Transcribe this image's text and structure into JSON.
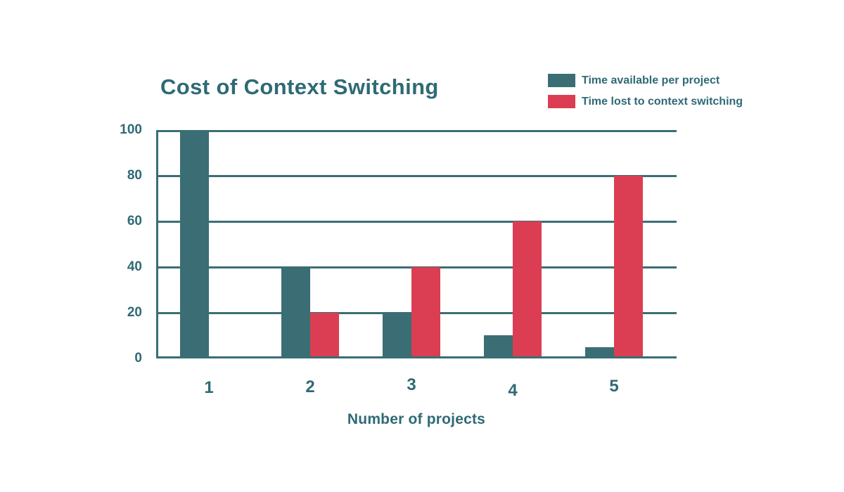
{
  "title": "Cost of Context Switching",
  "colors": {
    "background": "#FFFFFF",
    "teal": "#3A6E74",
    "red": "#DB3E52",
    "text_teal": "#2F6A75"
  },
  "legend": {
    "items": [
      {
        "label": "Time available per project",
        "color": "#3A6E74"
      },
      {
        "label": "Time lost to context switching",
        "color": "#DB3E52"
      }
    ]
  },
  "chart_data": {
    "type": "bar",
    "title": "Cost of Context Switching",
    "categories": [
      "1",
      "2",
      "3",
      "4",
      "5"
    ],
    "series": [
      {
        "name": "Time available per project",
        "color": "#3A6E74",
        "values": [
          100,
          40,
          20,
          10,
          5
        ]
      },
      {
        "name": "Time lost to context switching",
        "color": "#DB3E52",
        "values": [
          0,
          20,
          40,
          60,
          80
        ]
      }
    ],
    "xlabel": "Number of projects",
    "ylabel": "",
    "ylim": [
      0,
      100
    ],
    "yticks": [
      0,
      20,
      40,
      60,
      80,
      100
    ],
    "grid": true,
    "legend_position": "top-right"
  }
}
